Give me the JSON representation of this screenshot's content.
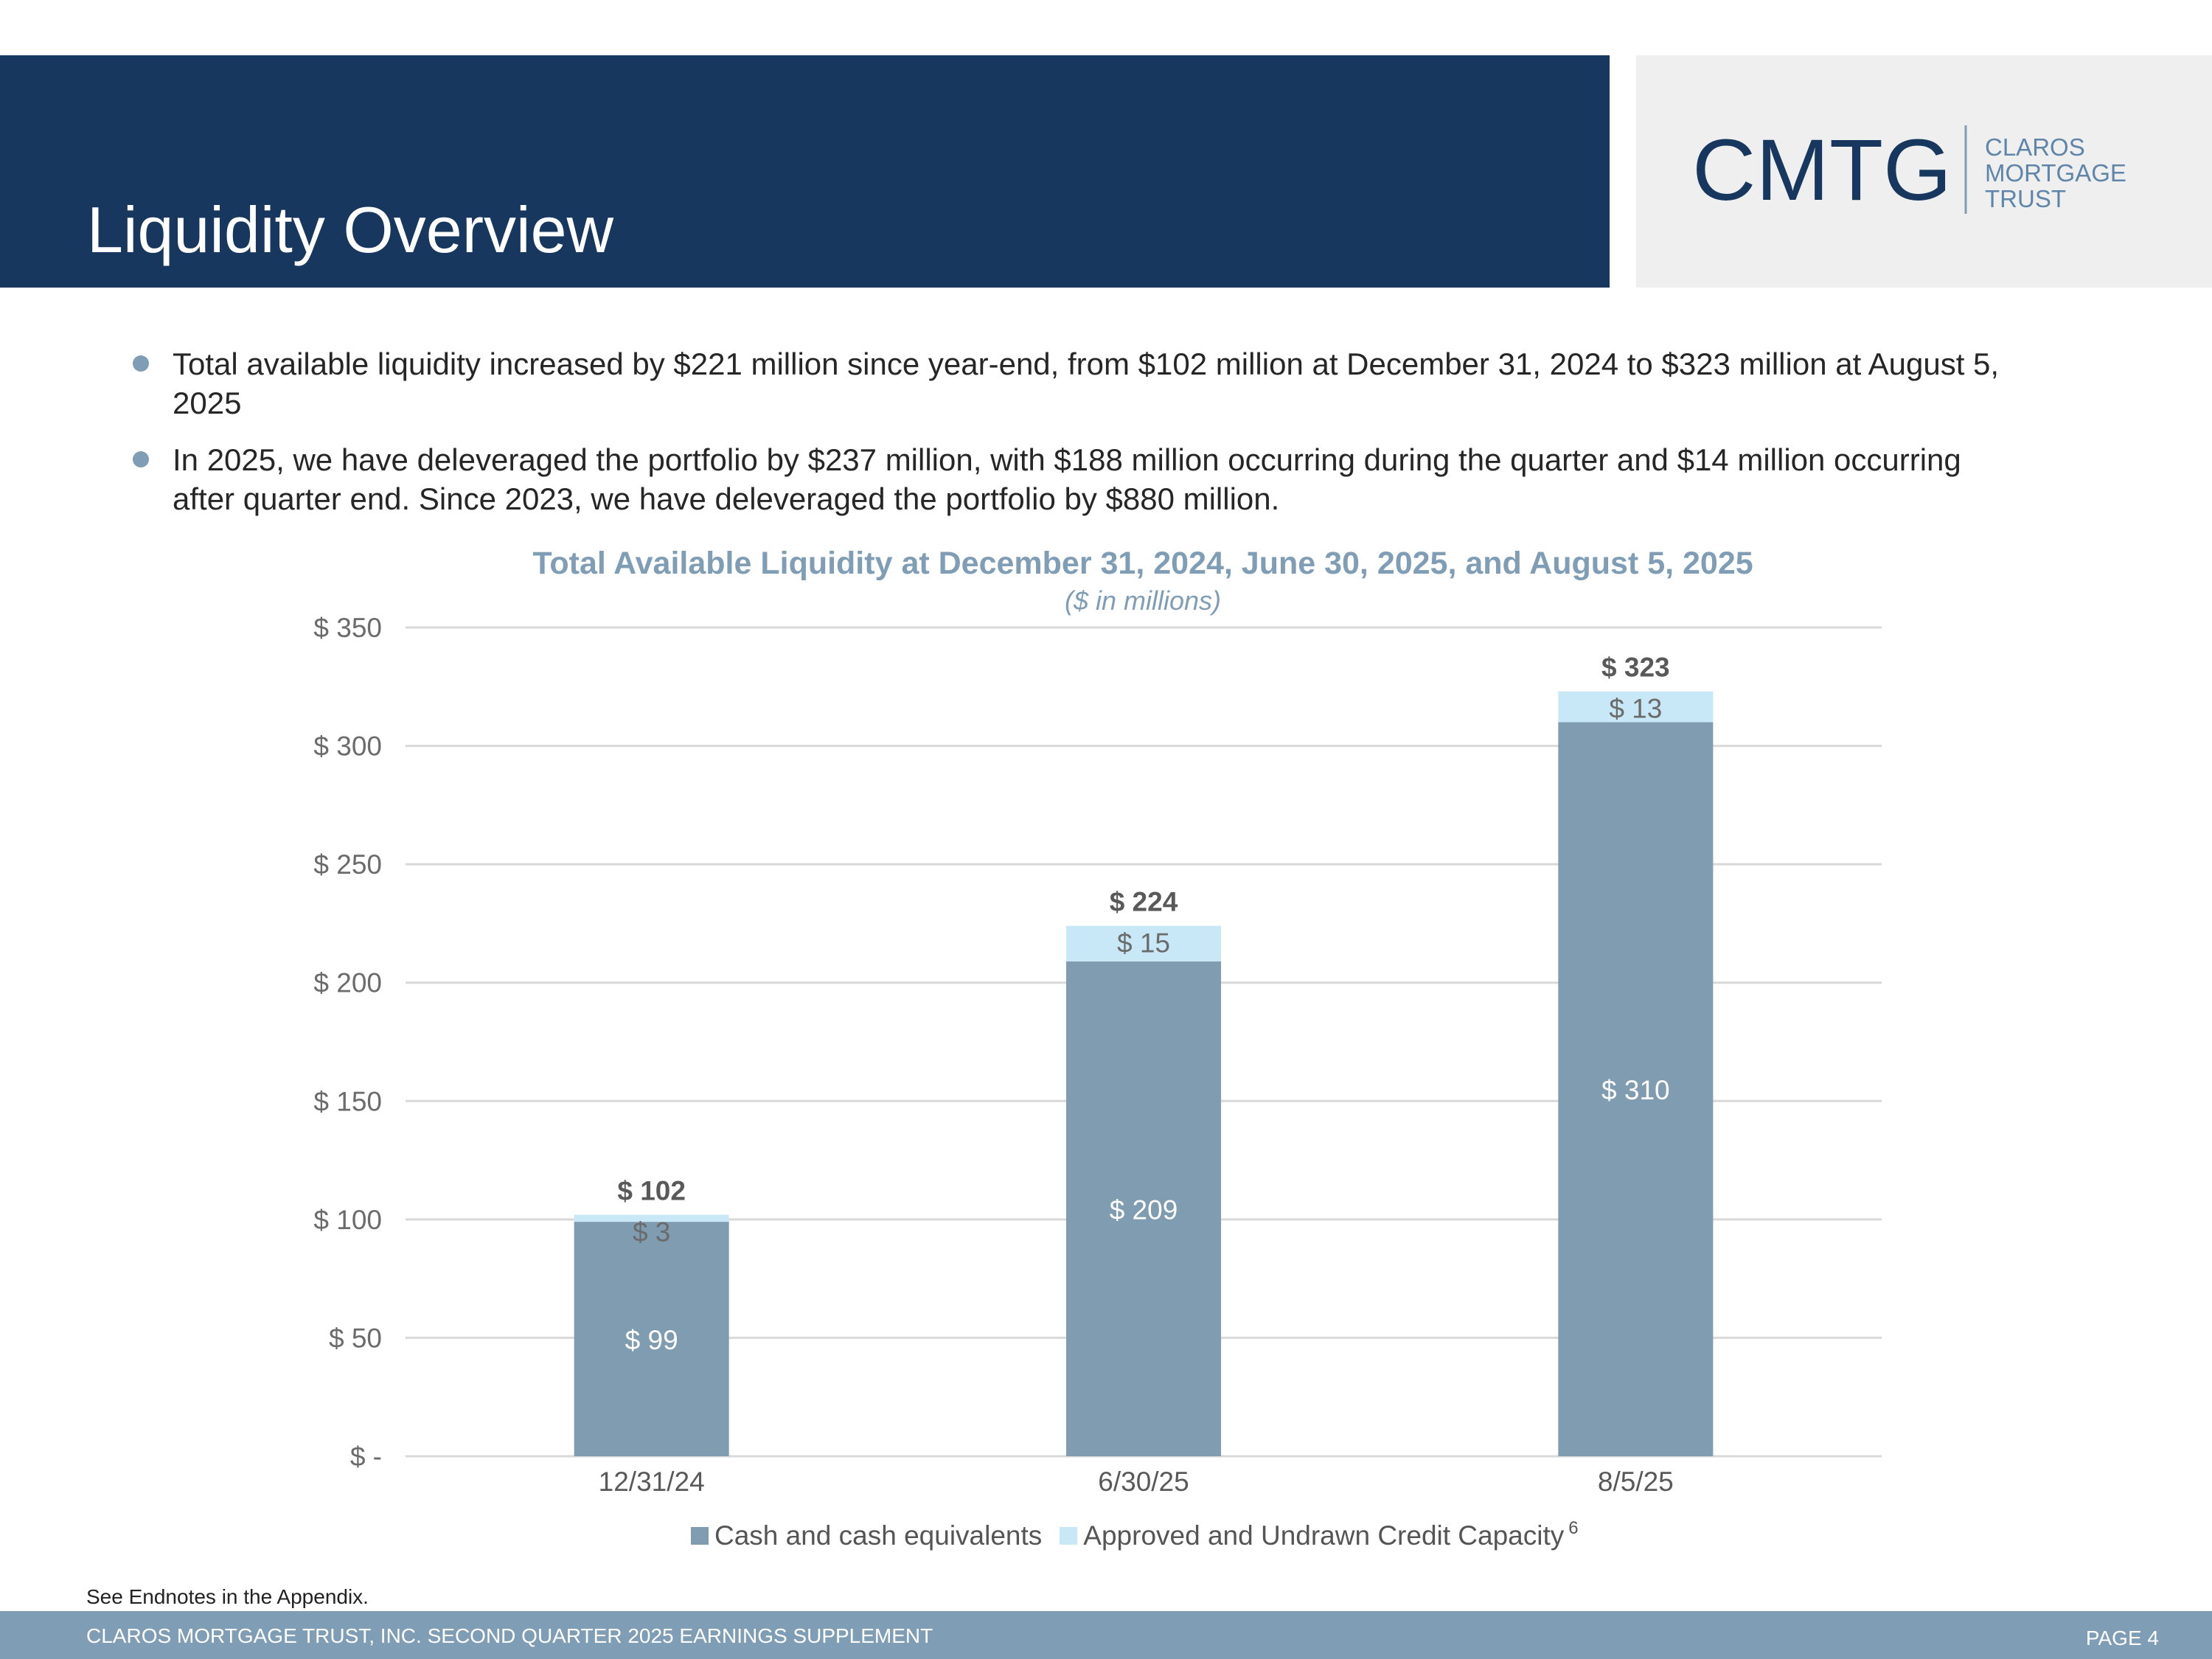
{
  "header": {
    "title": "Liquidity Overview",
    "logo_text": "CMTG",
    "logo_lines": [
      "CLAROS",
      "MORTGAGE",
      "TRUST"
    ]
  },
  "bullets": [
    {
      "line1": "Total available liquidity increased by $221 million since year-end, from $102 million at December 31, 2024 to $323 million at August 5,",
      "line2": "2025"
    },
    {
      "line1": "In 2025, we have deleveraged the portfolio by $237 million, with $188 million occurring during the quarter and $14 million occurring",
      "line2": "after quarter end. Since 2023, we have deleveraged the portfolio by $880 million."
    }
  ],
  "chart_data": {
    "type": "bar",
    "stacked": true,
    "title": "Total Available Liquidity at December 31, 2024, June 30, 2025, and August 5, 2025",
    "subtitle": "($ in millions)",
    "categories": [
      "12/31/24",
      "6/30/25",
      "8/5/25"
    ],
    "series": [
      {
        "name": "Cash and cash equivalents",
        "values": [
          99,
          209,
          310
        ],
        "labels": [
          "$ 99",
          "$ 209",
          "$ 310"
        ],
        "color": "#7f9cb1"
      },
      {
        "name": "Approved and Undrawn Credit Capacity",
        "values": [
          3,
          15,
          13
        ],
        "labels": [
          "$ 3",
          "$ 15",
          "$ 13"
        ],
        "color": "#c9e8f7"
      }
    ],
    "totals": [
      102,
      224,
      323
    ],
    "total_labels": [
      "$ 102",
      "$ 224",
      "$ 323"
    ],
    "ylim": [
      0,
      350
    ],
    "yticks": [
      0,
      50,
      100,
      150,
      200,
      250,
      300,
      350
    ],
    "ytick_labels": [
      "$ -",
      "$ 50",
      "$ 100",
      "$ 150",
      "$ 200",
      "$ 250",
      "$ 300",
      "$ 350"
    ],
    "grid": true,
    "legend_position": "bottom",
    "legend_note": "6"
  },
  "endnote": "See Endnotes in the Appendix.",
  "footer": {
    "left": "CLAROS MORTGAGE TRUST, INC. SECOND QUARTER 2025 EARNINGS SUPPLEMENT",
    "right": "PAGE 4"
  }
}
